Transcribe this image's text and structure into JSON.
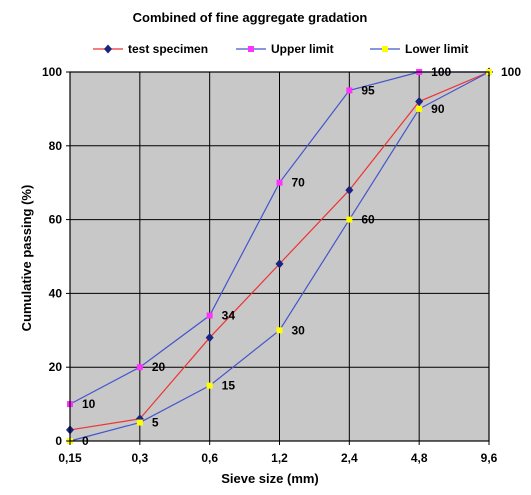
{
  "chart_data": {
    "type": "line",
    "title": "Combined of fine aggregate gradation",
    "xlabel": "Sieve size (mm)",
    "ylabel": "Cumulative passing (%)",
    "categories": [
      "0,15",
      "0,3",
      "0,6",
      "1,2",
      "2,4",
      "4,8",
      "9,6"
    ],
    "yticks": [
      "0",
      "20",
      "40",
      "60",
      "80",
      "100"
    ],
    "ylim": [
      0,
      100
    ],
    "grid": true,
    "legend_position": "top",
    "series": [
      {
        "name": "test specimen",
        "values": [
          3,
          6,
          28,
          48,
          68,
          92,
          100
        ],
        "line_color": "#ee3333",
        "marker_color": "#1a237e",
        "marker": "diamond",
        "show_labels": false
      },
      {
        "name": "Upper limit",
        "values": [
          10,
          20,
          34,
          70,
          95,
          100,
          100
        ],
        "value_labels": [
          "10",
          "20",
          "34",
          "70",
          "95",
          "100",
          ""
        ],
        "line_color": "#4455cc",
        "marker_color": "#ff33ff",
        "marker": "square",
        "show_labels": true
      },
      {
        "name": "Lower limit",
        "values": [
          0,
          5,
          15,
          30,
          60,
          90,
          100
        ],
        "value_labels": [
          "0",
          "5",
          "15",
          "30",
          "60",
          "90",
          "100"
        ],
        "line_color": "#4455cc",
        "marker_color": "#ffff00",
        "marker": "square",
        "show_labels": true
      }
    ]
  }
}
